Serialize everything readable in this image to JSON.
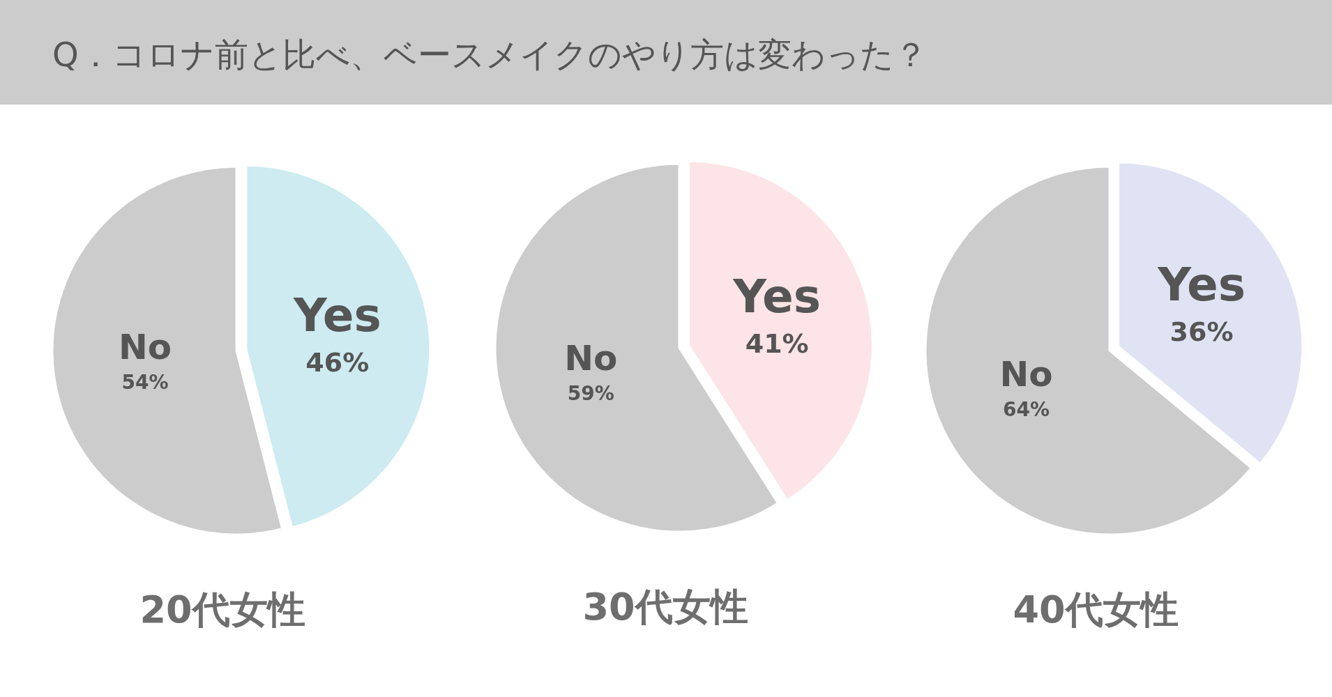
{
  "chart_data": [
    {
      "type": "other",
      "title": "Q．コロナ前と比べ、ベースメイクのやり方は変わった？"
    },
    {
      "type": "pie",
      "title": "20代女性",
      "categories": [
        "Yes",
        "No"
      ],
      "values": [
        46,
        54
      ],
      "value_labels": [
        "46%",
        "54%"
      ],
      "colors": [
        "#cdebf0",
        "#cccccc"
      ]
    },
    {
      "type": "pie",
      "title": "30代女性",
      "categories": [
        "Yes",
        "No"
      ],
      "values": [
        41,
        59
      ],
      "value_labels": [
        "41%",
        "59%"
      ],
      "colors": [
        "#fde4e6",
        "#cccccc"
      ]
    },
    {
      "type": "pie",
      "title": "40代女性",
      "categories": [
        "Yes",
        "No"
      ],
      "values": [
        36,
        64
      ],
      "value_labels": [
        "36%",
        "64%"
      ],
      "colors": [
        "#dfe3f3",
        "#cccccc"
      ]
    }
  ]
}
